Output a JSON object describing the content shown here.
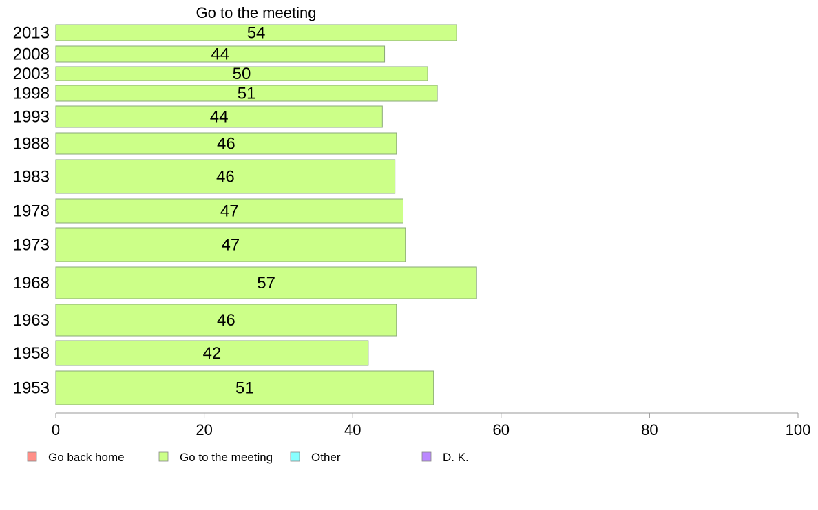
{
  "chart_data": {
    "type": "bar",
    "orientation": "horizontal",
    "title": "Go to the meeting",
    "xlabel": "",
    "ylabel": "",
    "xlim": [
      0,
      100
    ],
    "x_ticks": [
      0,
      20,
      40,
      60,
      80,
      100
    ],
    "categories": [
      "2013",
      "2008",
      "2003",
      "1998",
      "1993",
      "1988",
      "1983",
      "1978",
      "1973",
      "1968",
      "1963",
      "1958",
      "1953"
    ],
    "series": [
      {
        "name": "Go to the meeting",
        "color": "#ccff88",
        "values": [
          54,
          44,
          50,
          51,
          44,
          46,
          46,
          47,
          47,
          57,
          46,
          42,
          51
        ],
        "bar_lengths": [
          54.0,
          44.3,
          50.1,
          51.4,
          44.0,
          45.9,
          45.7,
          46.8,
          47.1,
          56.7,
          45.9,
          42.1,
          50.9
        ]
      }
    ],
    "grid": false,
    "legend_position": "bottom",
    "legend": [
      {
        "label": "Go back home",
        "color": "#ff8f88"
      },
      {
        "label": "Go to the meeting",
        "color": "#ccff88"
      },
      {
        "label": "Other",
        "color": "#88ffff"
      },
      {
        "label": "D. K.",
        "color": "#bb88ff"
      }
    ]
  }
}
